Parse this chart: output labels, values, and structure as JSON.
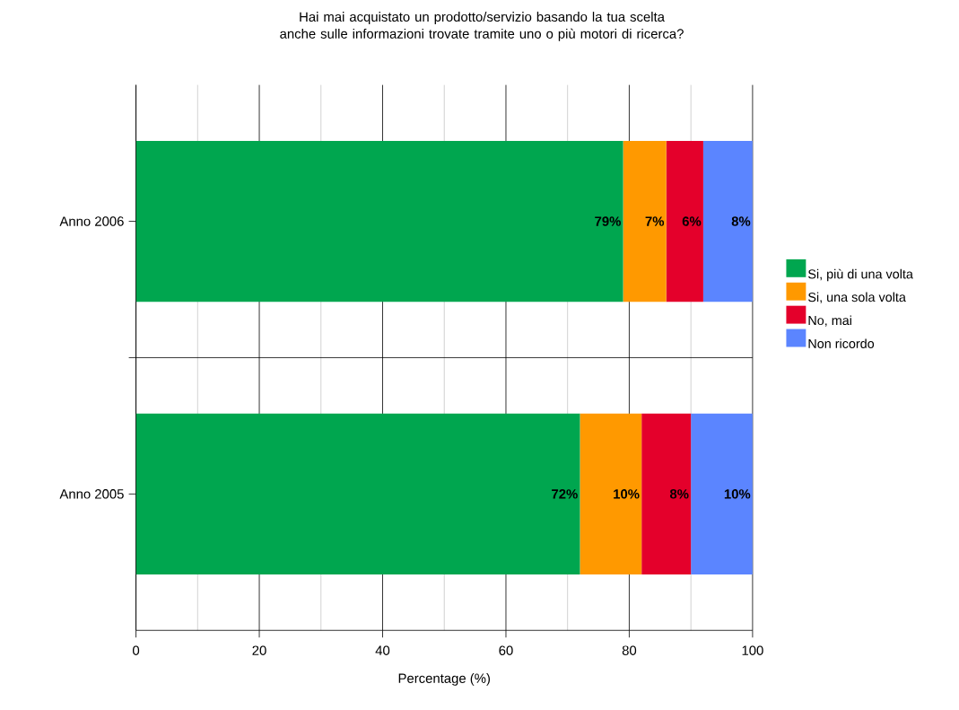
{
  "chart_data": {
    "type": "bar",
    "orientation": "horizontal",
    "stacked": true,
    "title": "Hai mai acquistato un prodotto/servizio basando la tua scelta anche sulle informazioni trovate tramite uno o più motori di ricerca?",
    "xlabel": "Percentage (%)",
    "categories": [
      "Anno 2006",
      "Anno 2005"
    ],
    "series": [
      {
        "name": "Si, più di una volta",
        "color": "#00a64f",
        "values": [
          79,
          72
        ],
        "value_labels": [
          "79%",
          "72%"
        ]
      },
      {
        "name": "Si, una sola volta",
        "color": "#ff9900",
        "values": [
          7,
          10
        ],
        "value_labels": [
          "7%",
          "10%"
        ]
      },
      {
        "name": "No, mai",
        "color": "#e4002b",
        "values": [
          6,
          8
        ],
        "value_labels": [
          "6%",
          "8%"
        ]
      },
      {
        "name": "Non ricordo",
        "color": "#5b85ff",
        "values": [
          8,
          10
        ],
        "value_labels": [
          "8%",
          "10%"
        ]
      }
    ],
    "xlim": [
      0,
      100
    ],
    "xticks": [
      0,
      20,
      40,
      60,
      80,
      100
    ],
    "grid": "x",
    "legend": "right"
  }
}
